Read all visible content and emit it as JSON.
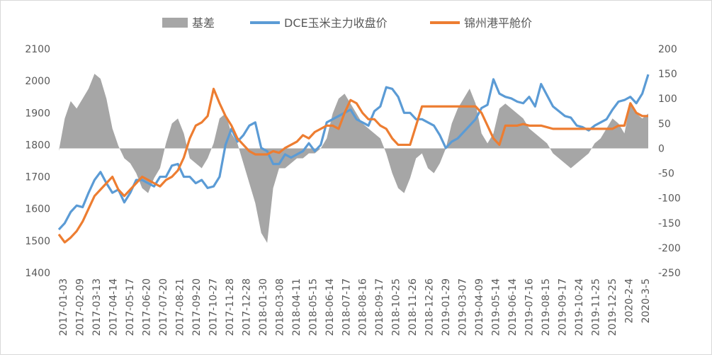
{
  "chart_data": {
    "type": "line",
    "title": "",
    "legend": [
      "基差",
      "DCE玉米主力收盘价",
      "锦州港平舱价"
    ],
    "legend_position": "top",
    "colors": {
      "basis": "#a6a6a6",
      "dce": "#5b9bd5",
      "jinzhou": "#ed7d31"
    },
    "left_axis": {
      "ylim": [
        1400,
        2100
      ],
      "ticks": [
        "1400",
        "1500",
        "1600",
        "1700",
        "1800",
        "1900",
        "2000",
        "2100"
      ]
    },
    "right_axis": {
      "ylim": [
        -250,
        200
      ],
      "ticks": [
        "-250",
        "-200",
        "-150",
        "-100",
        "-50",
        "0",
        "50",
        "100",
        "150",
        "200"
      ]
    },
    "x_ticks": [
      "2017-01-03",
      "2017-02-09",
      "2017-03-13",
      "2017-04-14",
      "2017-05-17",
      "2017-06-20",
      "2017-07-20",
      "2017-08-21",
      "2017-09-20",
      "2017-10-27",
      "2017-11-28",
      "2017-12-28",
      "2018-01-30",
      "2018-03-08",
      "2018-04-11",
      "2018-05-15",
      "2018-06-14",
      "2018-07-17",
      "2018-08-16",
      "2018-09-17",
      "2018-10-25",
      "2018-11-26",
      "2018-12-26",
      "2019-01-29",
      "2019-03-07",
      "2019-04-09",
      "2019-05-14",
      "2019-06-14",
      "2019-07-16",
      "2019-08-15",
      "2019-09-17",
      "2019-10-24",
      "2019-11-25",
      "2019-12-25",
      "2020-2-4",
      "2020-3-5"
    ],
    "series": [
      {
        "name": "DCE玉米主力收盘价",
        "axis": "left",
        "values": [
          1535,
          1555,
          1590,
          1610,
          1605,
          1650,
          1690,
          1715,
          1680,
          1650,
          1660,
          1620,
          1650,
          1690,
          1690,
          1680,
          1670,
          1700,
          1700,
          1735,
          1740,
          1700,
          1700,
          1680,
          1690,
          1665,
          1670,
          1700,
          1800,
          1850,
          1810,
          1830,
          1860,
          1870,
          1790,
          1780,
          1740,
          1740,
          1770,
          1760,
          1770,
          1780,
          1805,
          1780,
          1800,
          1870,
          1880,
          1890,
          1900,
          1910,
          1880,
          1870,
          1860,
          1905,
          1920,
          1980,
          1975,
          1950,
          1900,
          1900,
          1880,
          1880,
          1870,
          1860,
          1830,
          1790,
          1810,
          1820,
          1840,
          1860,
          1880,
          1915,
          1925,
          2005,
          1960,
          1950,
          1945,
          1935,
          1930,
          1950,
          1920,
          1990,
          1955,
          1920,
          1905,
          1890,
          1885,
          1860,
          1855,
          1845,
          1860,
          1870,
          1880,
          1910,
          1935,
          1940,
          1950,
          1930,
          1960,
          2020
        ]
      },
      {
        "name": "锦州港平舱价",
        "axis": "left",
        "values": [
          1520,
          1495,
          1510,
          1530,
          1560,
          1600,
          1640,
          1660,
          1680,
          1700,
          1660,
          1640,
          1660,
          1680,
          1700,
          1690,
          1680,
          1670,
          1690,
          1700,
          1720,
          1760,
          1820,
          1860,
          1870,
          1890,
          1975,
          1930,
          1890,
          1860,
          1820,
          1800,
          1780,
          1770,
          1770,
          1770,
          1780,
          1775,
          1790,
          1800,
          1810,
          1830,
          1820,
          1840,
          1850,
          1860,
          1860,
          1850,
          1900,
          1940,
          1930,
          1900,
          1880,
          1880,
          1860,
          1850,
          1820,
          1800,
          1800,
          1800,
          1860,
          1920,
          1920,
          1920,
          1920,
          1920,
          1920,
          1920,
          1920,
          1920,
          1920,
          1900,
          1860,
          1820,
          1800,
          1860,
          1860,
          1860,
          1865,
          1860,
          1860,
          1860,
          1855,
          1850,
          1850,
          1850,
          1850,
          1850,
          1850,
          1850,
          1850,
          1850,
          1850,
          1850,
          1860,
          1860,
          1930,
          1900,
          1890,
          1890
        ]
      },
      {
        "name": "基差",
        "axis": "right",
        "values": [
          -5,
          60,
          95,
          80,
          100,
          120,
          150,
          140,
          100,
          40,
          5,
          -20,
          -30,
          -50,
          -80,
          -90,
          -60,
          -40,
          10,
          50,
          60,
          30,
          -20,
          -30,
          -40,
          -20,
          10,
          60,
          70,
          30,
          10,
          -30,
          -70,
          -110,
          -170,
          -190,
          -80,
          -40,
          -40,
          -30,
          -20,
          -20,
          -10,
          -10,
          0,
          20,
          70,
          100,
          110,
          90,
          70,
          50,
          40,
          30,
          20,
          -10,
          -50,
          -80,
          -90,
          -60,
          -20,
          -10,
          -40,
          -50,
          -30,
          0,
          50,
          80,
          100,
          120,
          90,
          30,
          10,
          30,
          80,
          90,
          80,
          70,
          60,
          40,
          30,
          20,
          10,
          -10,
          -20,
          -30,
          -40,
          -30,
          -20,
          -10,
          10,
          20,
          40,
          60,
          50,
          30,
          90,
          70,
          60,
          70
        ]
      }
    ]
  }
}
